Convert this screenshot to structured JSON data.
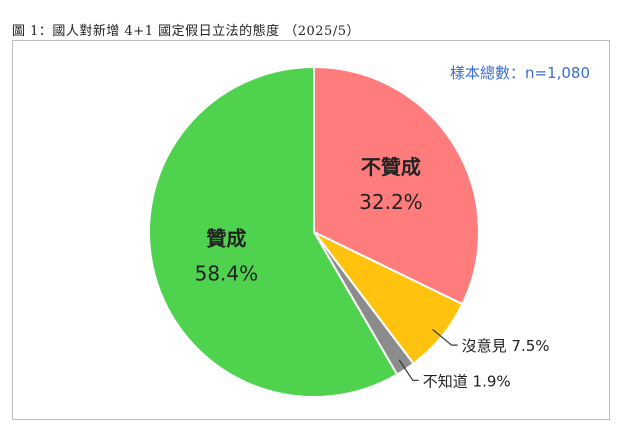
{
  "caption": "圖 1：國人對新增 4+1 國定假日立法的態度 （2025/5）",
  "sample_note": "樣本總數：n=1,080",
  "chart_data": {
    "type": "pie",
    "title": "圖 1：國人對新增 4+1 國定假日立法的態度 （2025/5）",
    "slices": [
      {
        "label": "不贊成",
        "value": 32.2,
        "value_text": "32.2%",
        "color": "#ff7c7c",
        "label_placement": "inside"
      },
      {
        "label": "沒意見",
        "value": 7.5,
        "value_text": "7.5%",
        "color": "#ffc20e",
        "label_placement": "outside"
      },
      {
        "label": "不知道",
        "value": 1.9,
        "value_text": "1.9%",
        "color": "#8c8c8c",
        "label_placement": "outside"
      },
      {
        "label": "贊成",
        "value": 58.4,
        "value_text": "58.4%",
        "color": "#4fd34f",
        "label_placement": "inside"
      }
    ],
    "start": "12 o'clock",
    "direction": "clockwise"
  }
}
